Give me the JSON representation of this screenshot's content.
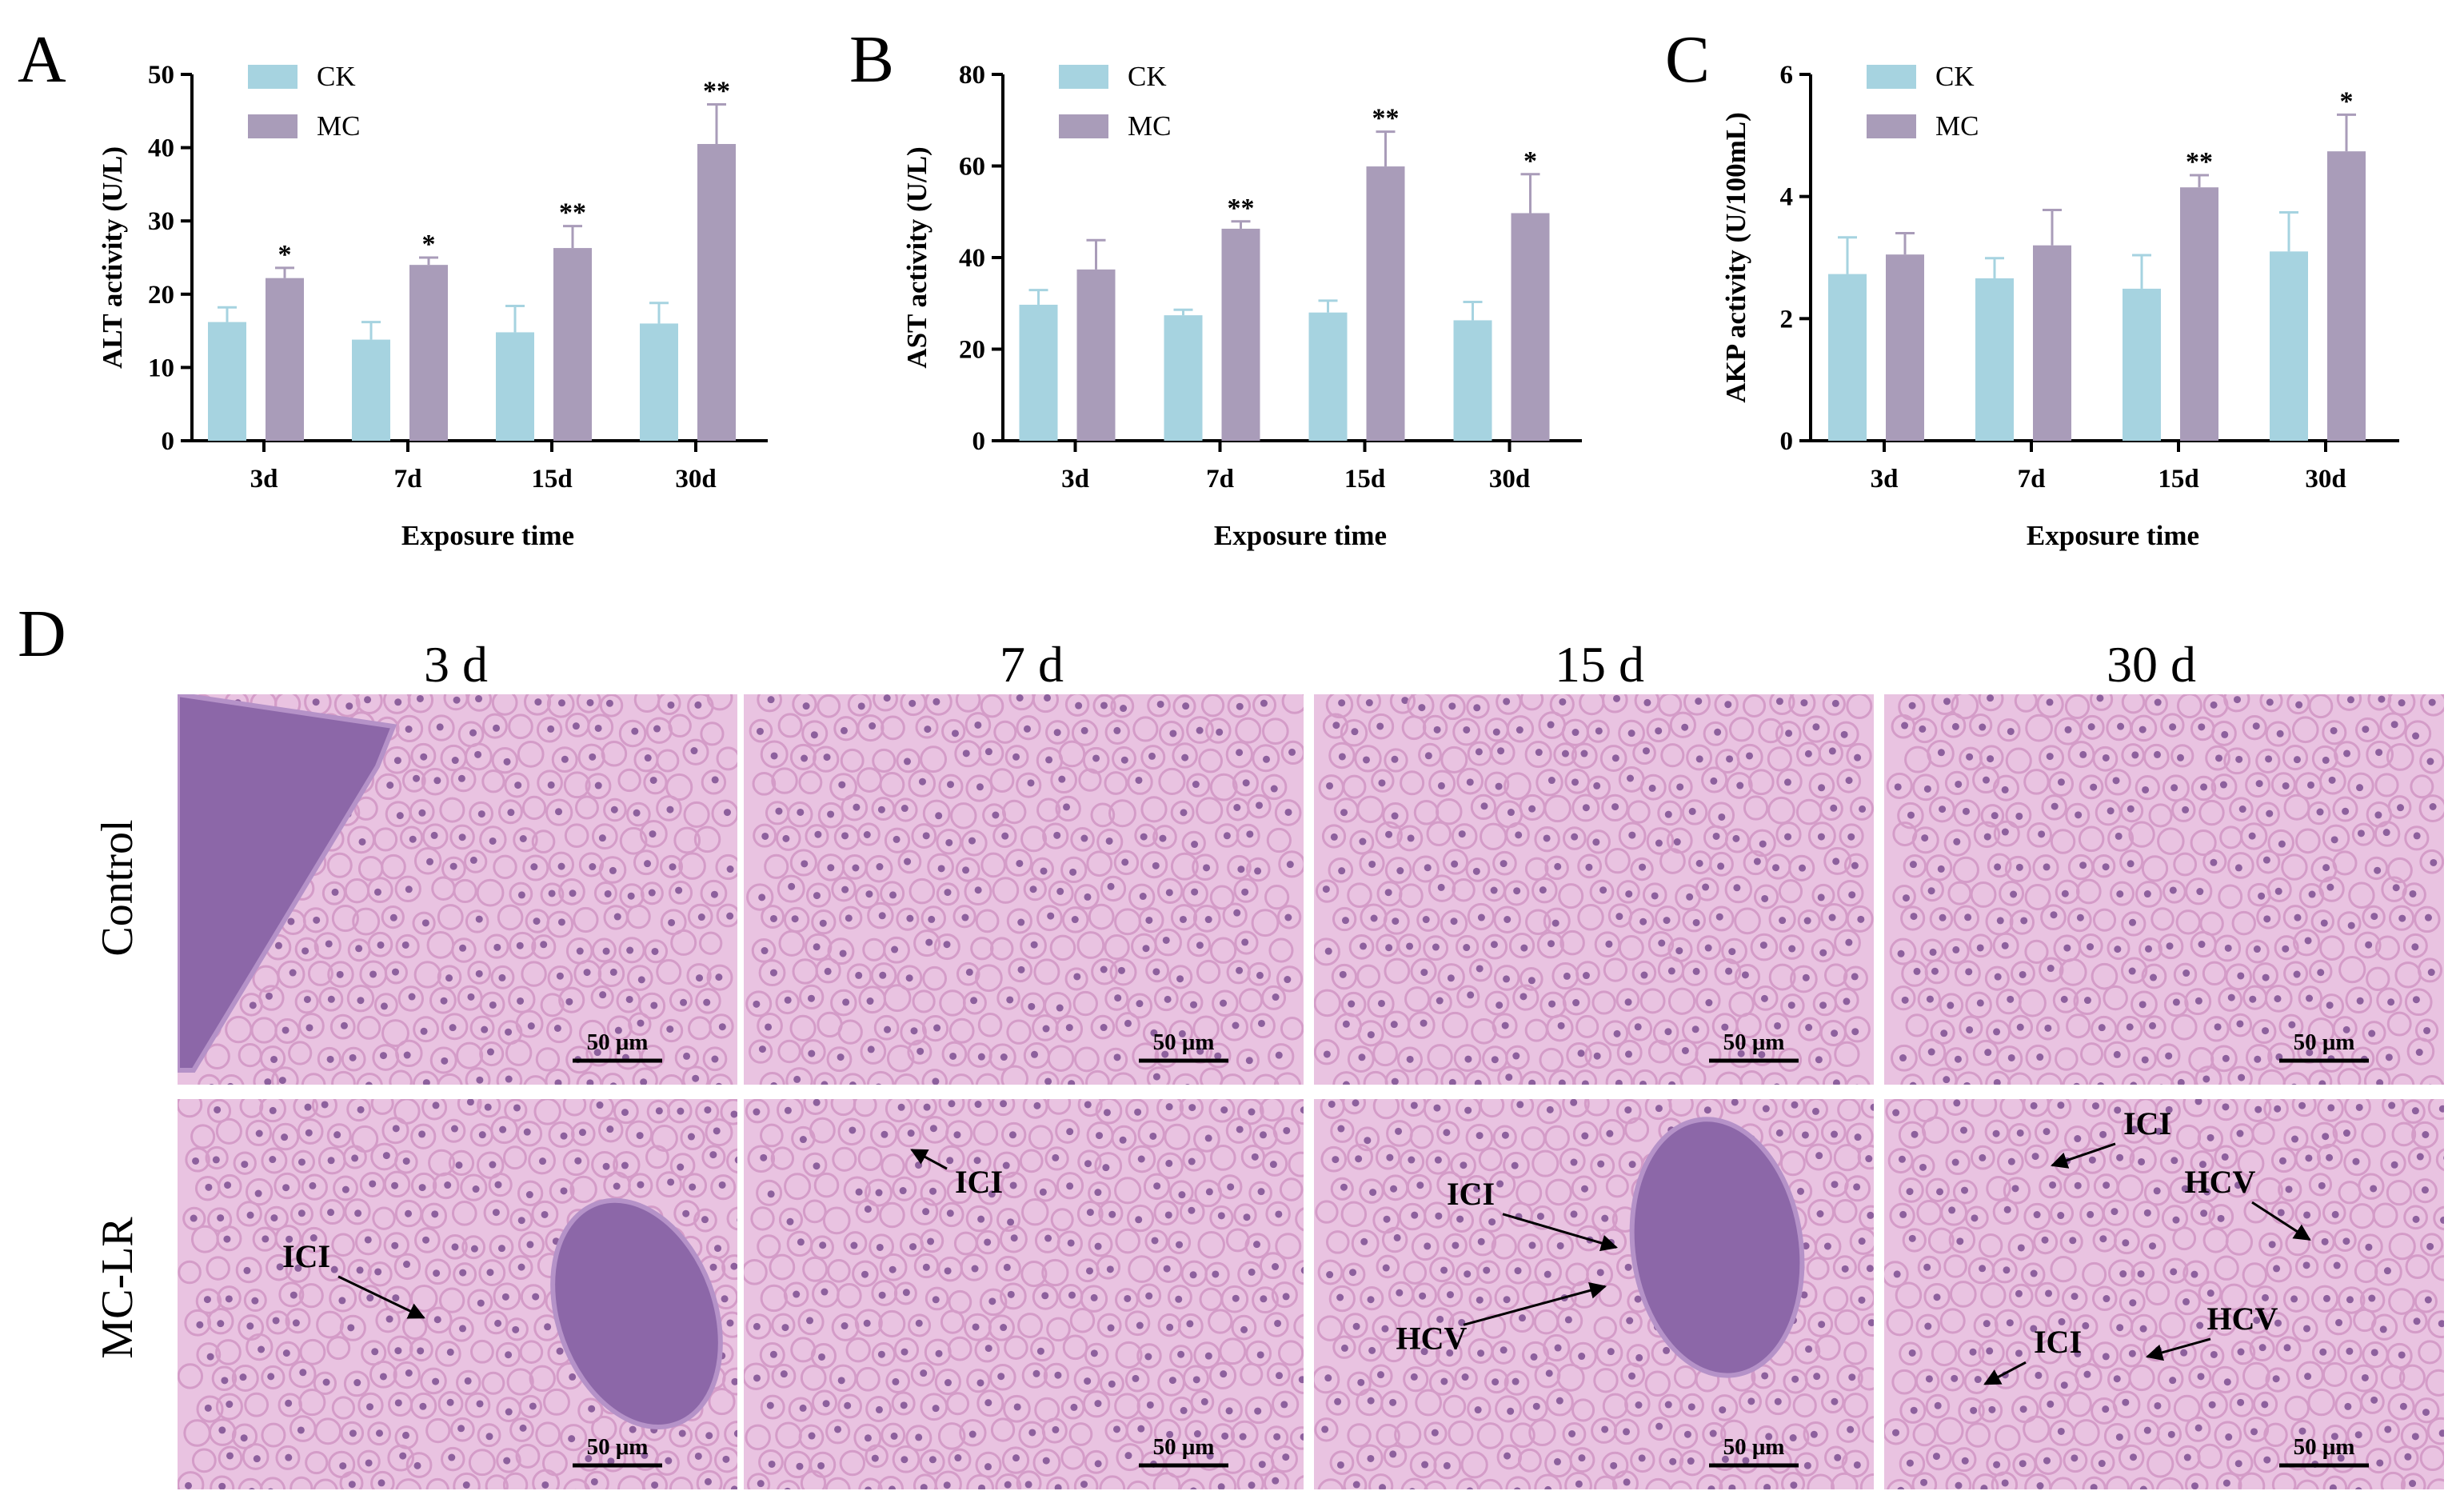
{
  "colors": {
    "ck": "#a6d3e0",
    "mc": "#a99cb9",
    "error_bar": "#999999",
    "tissue_bg": "#e9c3e1",
    "tissue_cell": "#d49cc8",
    "nucleus": "#6d3f86",
    "vessel": "#8c67a8",
    "vessel_light": "#b592c8"
  },
  "panel_letters": [
    "A",
    "B",
    "C",
    "D"
  ],
  "chart_data": [
    {
      "type": "bar",
      "letter": "A",
      "categories": [
        "3d",
        "7d",
        "15d",
        "30d"
      ],
      "series": [
        {
          "name": "CK",
          "values": [
            16.2,
            13.8,
            14.8,
            16.0
          ],
          "errors": [
            2.0,
            2.4,
            3.6,
            2.8
          ]
        },
        {
          "name": "MC",
          "values": [
            22.2,
            24.0,
            26.3,
            40.5
          ],
          "errors": [
            1.4,
            1.0,
            3.0,
            5.4
          ]
        }
      ],
      "significance": [
        "*",
        "*",
        "**",
        "**"
      ],
      "ylabel": "ALT activity  (U/L)",
      "xlabel": "Exposure time",
      "ylim": [
        0,
        50
      ],
      "yticks": [
        "0",
        "10",
        "20",
        "30",
        "40",
        "50"
      ],
      "legend_position": "top-left",
      "grid": false
    },
    {
      "type": "bar",
      "letter": "B",
      "categories": [
        "3d",
        "7d",
        "15d",
        "30d"
      ],
      "series": [
        {
          "name": "CK",
          "values": [
            29.7,
            27.4,
            28.0,
            26.3
          ],
          "errors": [
            3.2,
            1.2,
            2.6,
            4.0
          ]
        },
        {
          "name": "MC",
          "values": [
            37.4,
            46.3,
            59.9,
            49.7
          ],
          "errors": [
            6.4,
            1.6,
            7.6,
            8.5
          ]
        }
      ],
      "significance": [
        "",
        "**",
        "**",
        "*"
      ],
      "ylabel": "AST activity  (U/L)",
      "xlabel": "Exposure time",
      "ylim": [
        0,
        80
      ],
      "yticks": [
        "0",
        "20",
        "40",
        "60",
        "80"
      ],
      "legend_position": "top-left",
      "grid": false
    },
    {
      "type": "bar",
      "letter": "C",
      "categories": [
        "3d",
        "7d",
        "15d",
        "30d"
      ],
      "series": [
        {
          "name": "CK",
          "values": [
            2.73,
            2.66,
            2.49,
            3.1
          ],
          "errors": [
            0.6,
            0.33,
            0.55,
            0.64
          ]
        },
        {
          "name": "MC",
          "values": [
            3.05,
            3.2,
            4.15,
            4.74
          ],
          "errors": [
            0.35,
            0.58,
            0.2,
            0.6
          ]
        }
      ],
      "significance": [
        "",
        "",
        "**",
        "*"
      ],
      "ylabel": "AKP activity (U/100mL)",
      "xlabel": "Exposure time",
      "ylim": [
        0,
        6
      ],
      "yticks": [
        "0",
        "2",
        "4",
        "6"
      ],
      "legend_position": "top-left",
      "grid": false
    }
  ],
  "histology": {
    "columns": [
      "3 d",
      "7 d",
      "15 d",
      "30 d"
    ],
    "rows": [
      "Control",
      "MC-LR"
    ],
    "scale_bar": "50 μm",
    "annotations": [
      {
        "panel": "mc-3d",
        "label": "ICI"
      },
      {
        "panel": "mc-7d",
        "label": "ICI"
      },
      {
        "panel": "mc-15d",
        "label": "ICI"
      },
      {
        "panel": "mc-15d",
        "label": "HCV"
      },
      {
        "panel": "mc-30d",
        "label": "ICI"
      },
      {
        "panel": "mc-30d",
        "label": "HCV"
      },
      {
        "panel": "mc-30d",
        "label": "ICI"
      },
      {
        "panel": "mc-30d",
        "label": "HCV"
      }
    ]
  }
}
